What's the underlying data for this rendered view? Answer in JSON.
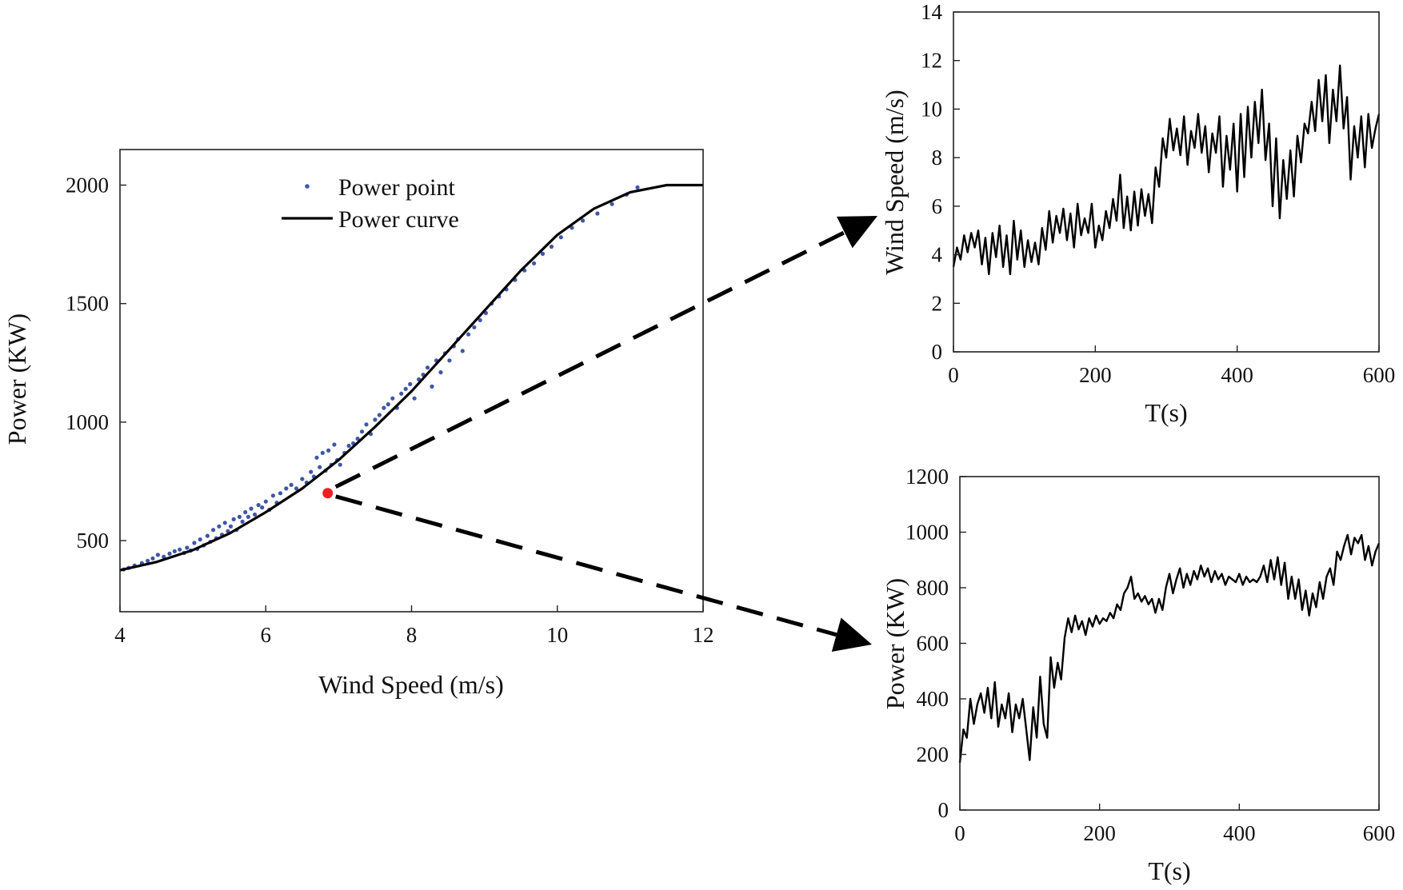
{
  "colors": {
    "power_point": "#3f57a6",
    "power_curve": "#000000",
    "highlight": "#ee2024",
    "series_line": "#000000",
    "arrow": "#000000"
  },
  "chart_data": [
    {
      "id": "power_curve_chart",
      "type": "scatter",
      "xlabel": "Wind Speed (m/s)",
      "ylabel": "Power (KW)",
      "xlim": [
        4,
        12
      ],
      "ylim": [
        200,
        2150
      ],
      "xticks": [
        4,
        6,
        8,
        10,
        12
      ],
      "yticks": [
        500,
        1000,
        1500,
        2000
      ],
      "legend": {
        "placement": "top-center",
        "entries": [
          "Power point",
          "Power curve"
        ]
      },
      "grid": false,
      "series": [
        {
          "name": "Power curve",
          "kind": "line",
          "x": [
            4.0,
            4.5,
            5.0,
            5.5,
            6.0,
            6.5,
            7.0,
            7.5,
            8.0,
            8.5,
            9.0,
            9.5,
            10.0,
            10.5,
            11.0,
            11.5,
            12.0
          ],
          "y": [
            375,
            410,
            460,
            530,
            620,
            720,
            840,
            980,
            1130,
            1300,
            1470,
            1640,
            1790,
            1900,
            1970,
            2000,
            2000
          ]
        },
        {
          "name": "Power point",
          "kind": "scatter",
          "x": [
            4.05,
            4.12,
            4.2,
            4.3,
            4.38,
            4.45,
            4.52,
            4.6,
            4.68,
            4.75,
            4.82,
            4.88,
            4.92,
            4.97,
            5.02,
            5.06,
            5.1,
            5.15,
            5.2,
            5.24,
            5.28,
            5.32,
            5.36,
            5.4,
            5.44,
            5.48,
            5.52,
            5.56,
            5.6,
            5.64,
            5.68,
            5.72,
            5.76,
            5.8,
            5.85,
            5.9,
            5.95,
            6.0,
            6.05,
            6.1,
            6.15,
            6.2,
            6.28,
            6.35,
            6.42,
            6.5,
            6.56,
            6.62,
            6.66,
            6.7,
            6.74,
            6.78,
            6.82,
            6.86,
            6.9,
            6.94,
            6.98,
            7.02,
            7.08,
            7.14,
            7.2,
            7.26,
            7.32,
            7.38,
            7.44,
            7.5,
            7.56,
            7.62,
            7.68,
            7.74,
            7.8,
            7.86,
            7.92,
            7.98,
            8.04,
            8.1,
            8.16,
            8.22,
            8.28,
            8.34,
            8.4,
            8.46,
            8.52,
            8.58,
            8.64,
            8.7,
            8.78,
            8.86,
            8.94,
            9.02,
            9.1,
            9.2,
            9.3,
            9.42,
            9.55,
            9.68,
            9.8,
            9.92,
            10.05,
            10.2,
            10.35,
            10.55,
            10.75,
            10.95,
            11.1
          ],
          "y": [
            378,
            385,
            395,
            405,
            415,
            425,
            440,
            432,
            445,
            455,
            462,
            448,
            470,
            458,
            490,
            465,
            505,
            480,
            520,
            495,
            545,
            510,
            560,
            525,
            575,
            540,
            560,
            590,
            545,
            600,
            580,
            620,
            600,
            635,
            610,
            650,
            640,
            665,
            630,
            690,
            660,
            700,
            720,
            735,
            720,
            760,
            745,
            790,
            770,
            850,
            810,
            870,
            795,
            880,
            820,
            905,
            840,
            820,
            870,
            900,
            910,
            930,
            960,
            990,
            950,
            1010,
            1030,
            1060,
            1075,
            1100,
            1060,
            1120,
            1140,
            1160,
            1100,
            1180,
            1200,
            1230,
            1150,
            1260,
            1210,
            1290,
            1260,
            1320,
            1350,
            1300,
            1370,
            1400,
            1430,
            1460,
            1500,
            1530,
            1560,
            1600,
            1640,
            1670,
            1710,
            1740,
            1780,
            1820,
            1850,
            1880,
            1920,
            1960,
            1990
          ]
        }
      ],
      "highlight_point": {
        "x": 6.85,
        "y": 700
      }
    },
    {
      "id": "wind_speed_chart",
      "type": "line",
      "xlabel": "T(s)",
      "ylabel": "Wind Speed (m/s)",
      "xlim": [
        0,
        600
      ],
      "ylim": [
        0,
        14
      ],
      "xticks": [
        0,
        200,
        400,
        600
      ],
      "yticks": [
        0,
        2,
        4,
        6,
        8,
        10,
        12,
        14
      ],
      "grid": false,
      "series": [
        {
          "x": [
            0,
            5,
            10,
            15,
            20,
            25,
            30,
            35,
            40,
            45,
            50,
            55,
            60,
            65,
            70,
            75,
            80,
            85,
            90,
            95,
            100,
            105,
            110,
            115,
            120,
            125,
            130,
            135,
            140,
            145,
            150,
            155,
            160,
            165,
            170,
            175,
            180,
            185,
            190,
            195,
            200,
            205,
            210,
            215,
            220,
            225,
            230,
            235,
            240,
            245,
            250,
            255,
            260,
            265,
            270,
            275,
            280,
            285,
            290,
            295,
            300,
            305,
            310,
            315,
            320,
            325,
            330,
            335,
            340,
            345,
            350,
            355,
            360,
            365,
            370,
            375,
            380,
            385,
            390,
            395,
            400,
            405,
            410,
            415,
            420,
            425,
            430,
            435,
            440,
            445,
            450,
            455,
            460,
            465,
            470,
            475,
            480,
            485,
            490,
            495,
            500,
            505,
            510,
            515,
            520,
            525,
            530,
            535,
            540,
            545,
            550,
            555,
            560,
            565,
            570,
            575,
            580,
            585,
            590,
            595,
            600
          ],
          "y": [
            3.5,
            4.3,
            3.8,
            4.8,
            4.1,
            4.9,
            4.3,
            5.0,
            3.6,
            4.7,
            3.2,
            4.9,
            3.9,
            5.2,
            3.5,
            4.8,
            3.2,
            5.4,
            3.8,
            5.0,
            3.5,
            4.6,
            3.7,
            4.5,
            3.6,
            5.1,
            4.2,
            5.8,
            4.5,
            5.6,
            4.9,
            5.9,
            4.6,
            5.7,
            4.3,
            6.1,
            4.8,
            5.5,
            4.9,
            6.1,
            4.3,
            5.2,
            4.6,
            5.8,
            5.1,
            6.3,
            5.4,
            7.3,
            5.1,
            6.4,
            5.0,
            6.6,
            5.2,
            6.7,
            5.6,
            6.5,
            5.3,
            7.6,
            6.8,
            8.8,
            8.0,
            9.6,
            8.3,
            9.2,
            8.1,
            9.7,
            7.7,
            9.1,
            8.4,
            9.8,
            8.2,
            9.3,
            7.4,
            9.0,
            8.2,
            9.7,
            6.8,
            8.9,
            7.5,
            9.4,
            6.6,
            9.8,
            7.2,
            10.1,
            8.0,
            10.3,
            8.6,
            10.8,
            7.9,
            9.4,
            6.0,
            8.8,
            5.5,
            7.9,
            6.3,
            8.3,
            6.4,
            8.9,
            7.8,
            9.4,
            9.0,
            10.3,
            9.1,
            11.2,
            9.5,
            11.4,
            8.6,
            10.8,
            9.5,
            11.8,
            9.2,
            10.5,
            7.1,
            9.3,
            8.0,
            9.7,
            7.6,
            9.8,
            8.4,
            9.2,
            9.8
          ]
        }
      ]
    },
    {
      "id": "power_time_chart",
      "type": "line",
      "xlabel": "T(s)",
      "ylabel": "Power (KW)",
      "xlim": [
        0,
        600
      ],
      "ylim": [
        0,
        1200
      ],
      "xticks": [
        0,
        200,
        400,
        600
      ],
      "yticks": [
        0,
        200,
        400,
        600,
        800,
        1000,
        1200
      ],
      "grid": false,
      "series": [
        {
          "x": [
            0,
            5,
            10,
            15,
            20,
            25,
            30,
            35,
            40,
            45,
            50,
            55,
            60,
            65,
            70,
            75,
            80,
            85,
            90,
            95,
            100,
            105,
            110,
            115,
            120,
            125,
            130,
            135,
            140,
            145,
            150,
            155,
            160,
            165,
            170,
            175,
            180,
            185,
            190,
            195,
            200,
            205,
            210,
            215,
            220,
            225,
            230,
            235,
            240,
            245,
            250,
            255,
            260,
            265,
            270,
            275,
            280,
            285,
            290,
            295,
            300,
            305,
            310,
            315,
            320,
            325,
            330,
            335,
            340,
            345,
            350,
            355,
            360,
            365,
            370,
            375,
            380,
            385,
            390,
            395,
            400,
            405,
            410,
            415,
            420,
            425,
            430,
            435,
            440,
            445,
            450,
            455,
            460,
            465,
            470,
            475,
            480,
            485,
            490,
            495,
            500,
            505,
            510,
            515,
            520,
            525,
            530,
            535,
            540,
            545,
            550,
            555,
            560,
            565,
            570,
            575,
            580,
            585,
            590,
            595,
            600
          ],
          "y": [
            170,
            290,
            260,
            400,
            310,
            380,
            420,
            350,
            440,
            330,
            460,
            300,
            380,
            330,
            420,
            280,
            380,
            330,
            400,
            290,
            180,
            370,
            260,
            480,
            310,
            260,
            550,
            440,
            530,
            470,
            620,
            690,
            640,
            700,
            650,
            680,
            630,
            690,
            660,
            700,
            670,
            690,
            680,
            710,
            690,
            740,
            720,
            780,
            800,
            840,
            760,
            780,
            750,
            770,
            740,
            760,
            710,
            760,
            720,
            800,
            850,
            780,
            830,
            870,
            800,
            850,
            810,
            860,
            830,
            880,
            840,
            870,
            820,
            860,
            830,
            850,
            810,
            840,
            830,
            820,
            850,
            810,
            840,
            820,
            830,
            820,
            840,
            880,
            820,
            900,
            830,
            910,
            810,
            890,
            760,
            840,
            760,
            830,
            720,
            790,
            700,
            780,
            730,
            820,
            760,
            840,
            870,
            810,
            930,
            900,
            950,
            990,
            920,
            980,
            960,
            990,
            900,
            950,
            880,
            930,
            960
          ]
        }
      ]
    }
  ]
}
